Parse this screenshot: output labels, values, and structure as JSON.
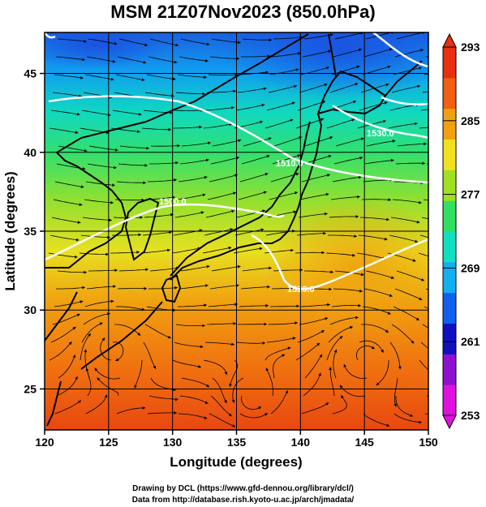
{
  "title": "MSM 21Z07Nov2023 (850.0hPa)",
  "x_axis": {
    "label": "Longitude (degrees)",
    "range": [
      120,
      150
    ],
    "ticks": [
      {
        "value": 120,
        "label": "120"
      },
      {
        "value": 125,
        "label": "125"
      },
      {
        "value": 130,
        "label": "130"
      },
      {
        "value": 135,
        "label": "135"
      },
      {
        "value": 140,
        "label": "140"
      },
      {
        "value": 145,
        "label": "145"
      },
      {
        "value": 150,
        "label": "150"
      }
    ]
  },
  "y_axis": {
    "label": "Latitude  (degrees)",
    "range": [
      22.4,
      47.6
    ],
    "ticks": [
      {
        "value": 25,
        "label": "25"
      },
      {
        "value": 30,
        "label": "30"
      },
      {
        "value": 35,
        "label": "35"
      },
      {
        "value": 40,
        "label": "40"
      },
      {
        "value": 45,
        "label": "45"
      }
    ]
  },
  "colorbar": {
    "min": 253,
    "max": 293,
    "labels": [
      {
        "value": 293,
        "label": "293"
      },
      {
        "value": 285,
        "label": "285"
      },
      {
        "value": 277,
        "label": "277"
      },
      {
        "value": 269,
        "label": "269"
      },
      {
        "value": 261,
        "label": "261"
      },
      {
        "value": 253,
        "label": "253"
      }
    ],
    "colors": [
      "#e010e0",
      "#9010d0",
      "#1010c0",
      "#1060f0",
      "#10b0f0",
      "#10e0c0",
      "#30e060",
      "#a0e020",
      "#f0e020",
      "#f0a010",
      "#f06010",
      "#e83010"
    ]
  },
  "contours": [
    {
      "label": "1500.0"
    },
    {
      "label": "1510.0"
    },
    {
      "label": "1520.0"
    },
    {
      "label": "1530.0"
    }
  ],
  "footer": {
    "line1": "Drawing by DCL (https://www.gfd-dennou.org/library/dcl/)",
    "line2": "Data from http://database.rish.kyoto-u.ac.jp/arch/jmadata/"
  }
}
